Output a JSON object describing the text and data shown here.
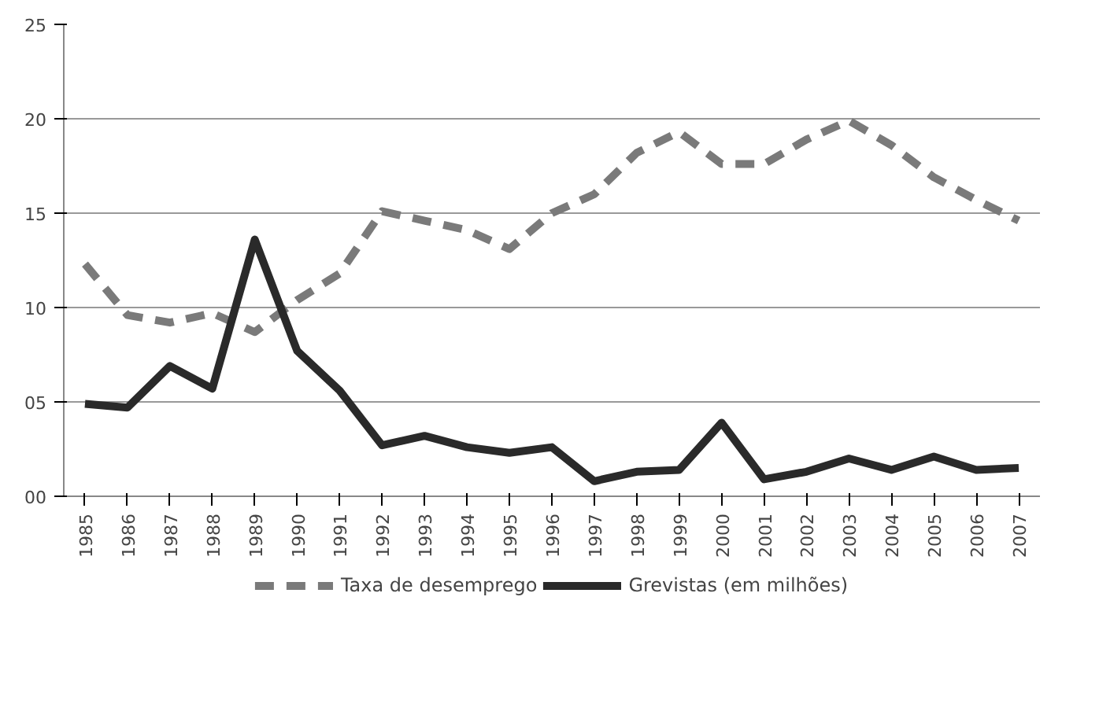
{
  "chart_data": {
    "type": "line",
    "categories": [
      "1985",
      "1986",
      "1987",
      "1988",
      "1989",
      "1990",
      "1991",
      "1992",
      "1993",
      "1994",
      "1995",
      "1996",
      "1997",
      "1998",
      "1999",
      "2000",
      "2001",
      "2002",
      "2003",
      "2004",
      "2005",
      "2006",
      "2007"
    ],
    "series": [
      {
        "name": "Taxa de desemprego",
        "color": "#7a7a7a",
        "line_style": "dashed",
        "values": [
          12.3,
          9.6,
          9.2,
          9.7,
          8.7,
          10.4,
          11.8,
          15.1,
          14.6,
          14.1,
          13.1,
          15.0,
          16.0,
          18.2,
          19.3,
          17.6,
          17.6,
          18.9,
          19.9,
          18.6,
          16.9,
          15.7,
          14.6
        ]
      },
      {
        "name": "Grevistas (em milhões)",
        "color": "#2a2a2a",
        "line_style": "solid",
        "values": [
          4.9,
          4.7,
          6.9,
          5.7,
          13.6,
          7.7,
          5.6,
          2.7,
          3.2,
          2.6,
          2.3,
          2.6,
          0.8,
          1.3,
          1.4,
          3.9,
          0.9,
          1.3,
          2.0,
          1.4,
          2.1,
          1.4,
          1.5
        ]
      }
    ],
    "ylim": [
      0,
      25
    ],
    "yticks": [
      {
        "value": 0,
        "label": "00"
      },
      {
        "value": 5,
        "label": "05"
      },
      10,
      15,
      20,
      25
    ],
    "grid": "y",
    "legend": "bottom",
    "marker": "none"
  }
}
